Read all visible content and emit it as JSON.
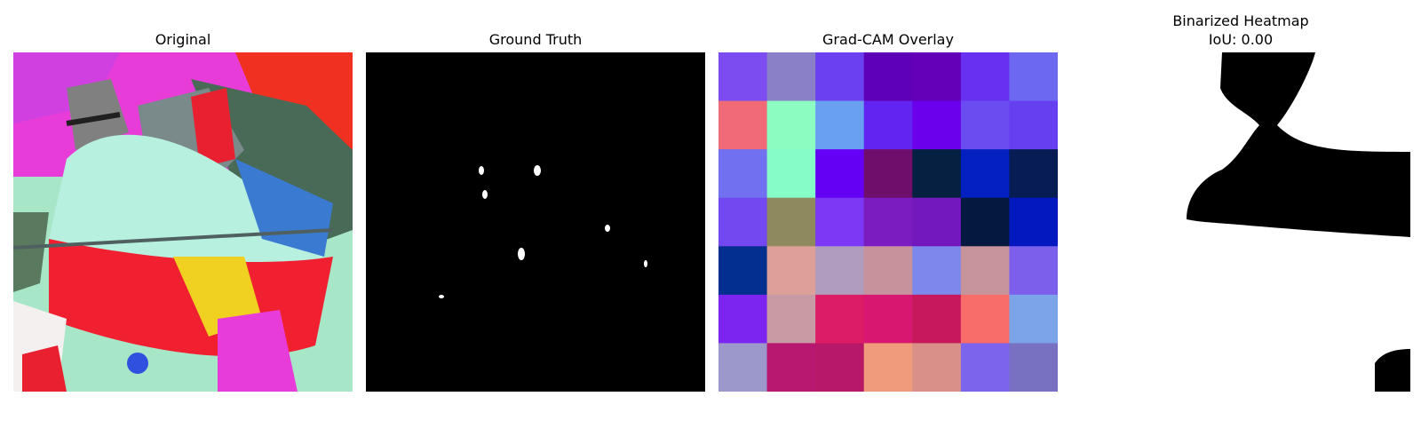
{
  "panels": {
    "original": {
      "title": "Original"
    },
    "ground_truth": {
      "title": "Ground Truth"
    },
    "gradcam": {
      "title": "Grad-CAM Overlay",
      "grid_colors": [
        [
          "#7c4cf0",
          "#8a80c8",
          "#6a40f0",
          "#5e00b8",
          "#6400b8",
          "#6830f0",
          "#6c68f0"
        ],
        [
          "#f06a78",
          "#8cfcc0",
          "#6aa0f0",
          "#6224f0",
          "#6a00ec",
          "#6a4cf0",
          "#6640f0"
        ],
        [
          "#7070f0",
          "#86fcc8",
          "#6400f4",
          "#700e6c",
          "#052040",
          "#0420c0",
          "#081c54"
        ],
        [
          "#7448f0",
          "#8e8a5e",
          "#7c38f4",
          "#7a1cc0",
          "#7218bc",
          "#051840",
          "#0418c0"
        ],
        [
          "#033090",
          "#dca098",
          "#b09cbc",
          "#c8929c",
          "#7c88ec",
          "#c8949c",
          "#7c60ec"
        ],
        [
          "#7c24f0",
          "#c89aa4",
          "#dc1c64",
          "#d81870",
          "#c8185c",
          "#f86c6a",
          "#7ca4e8"
        ],
        [
          "#9c98cc",
          "#b81870",
          "#b81868",
          "#f09c7c",
          "#d89088",
          "#7c64ec",
          "#7870c0"
        ]
      ]
    },
    "binarized": {
      "title": "Binarized Heatmap",
      "iou_label": "IoU: 0.00"
    }
  }
}
